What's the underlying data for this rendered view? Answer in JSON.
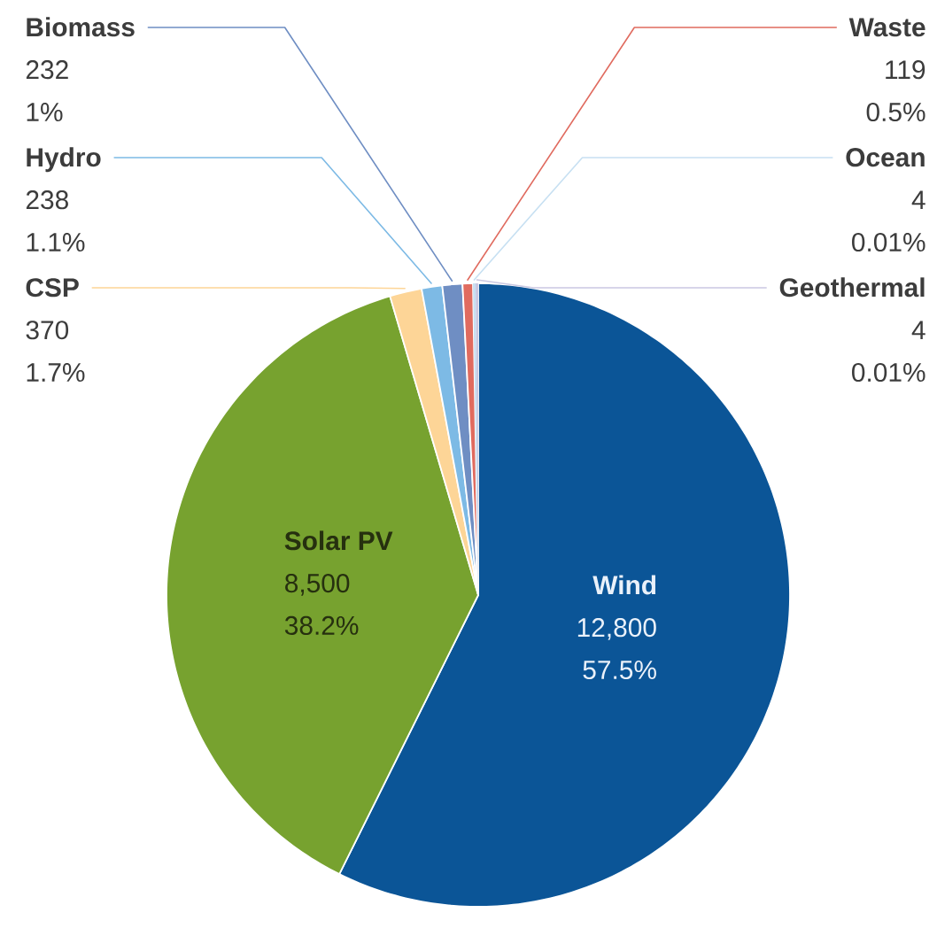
{
  "chart_data": {
    "type": "pie",
    "categories": [
      "Wind",
      "Solar PV",
      "CSP",
      "Hydro",
      "Biomass",
      "Waste",
      "Ocean",
      "Geothermal"
    ],
    "values": [
      12800,
      8500,
      370,
      238,
      232,
      119,
      4,
      4
    ],
    "colors": [
      "#0b5597",
      "#77a22f",
      "#fdd597",
      "#7dbae5",
      "#6f8ec3",
      "#e06b5f",
      "#c7e0f2",
      "#cac8e2"
    ],
    "value_labels": [
      "12,800 57.5%",
      "8,500 38.2%",
      "370 1.7%",
      "238 1.1%",
      "232 1%",
      "119 0.5%",
      "4 0.01%",
      "4 0.01%"
    ]
  }
}
